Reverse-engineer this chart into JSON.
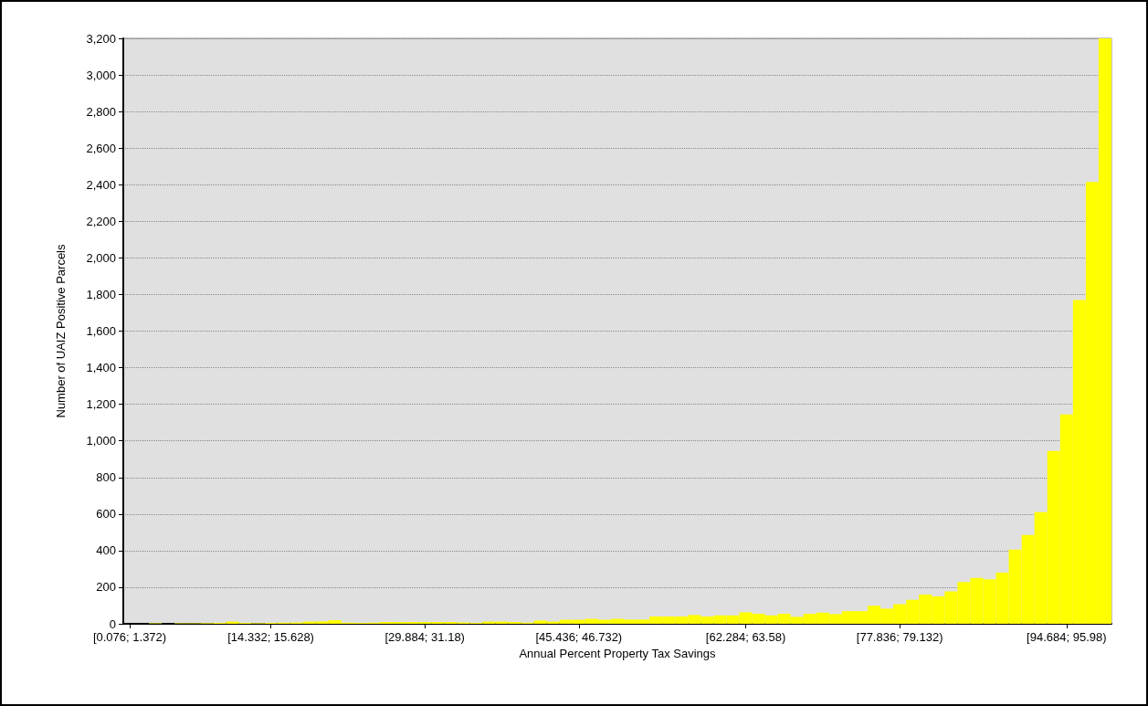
{
  "chart_data": {
    "type": "bar",
    "xlabel": "Annual Percent Property Tax Savings",
    "ylabel": "Number of UAIZ Positive Parcels",
    "categories": [
      "[0.076; 1.372)",
      null,
      null,
      null,
      null,
      null,
      null,
      null,
      null,
      null,
      null,
      "[14.332; 15.628)",
      null,
      null,
      null,
      null,
      null,
      null,
      null,
      null,
      null,
      null,
      null,
      "[29.884; 31.18)",
      null,
      null,
      null,
      null,
      null,
      null,
      null,
      null,
      null,
      null,
      null,
      "[45.436; 46.732)",
      null,
      null,
      null,
      null,
      null,
      null,
      null,
      null,
      null,
      null,
      null,
      null,
      "[62.284; 63.58)",
      null,
      null,
      null,
      null,
      null,
      null,
      null,
      null,
      null,
      null,
      null,
      "[77.836; 79.132)",
      null,
      null,
      null,
      null,
      null,
      null,
      null,
      null,
      null,
      null,
      null,
      null,
      "[94.684; 95.98)",
      null,
      null,
      null
    ],
    "values": [
      null,
      null,
      3,
      null,
      3,
      3,
      4,
      5,
      12,
      5,
      4,
      5,
      6,
      7,
      12,
      13,
      20,
      6,
      5,
      6,
      10,
      10,
      10,
      10,
      10,
      10,
      8,
      5,
      12,
      12,
      10,
      6,
      18,
      12,
      22,
      22,
      27,
      22,
      27,
      23,
      23,
      40,
      40,
      40,
      48,
      40,
      46,
      46,
      63,
      55,
      46,
      55,
      38,
      55,
      61,
      53,
      69,
      69,
      99,
      83,
      107,
      131,
      160,
      150,
      177,
      228,
      251,
      243,
      280,
      405,
      486,
      610,
      945,
      1145,
      1770,
      2415,
      3200
    ],
    "color": "#ffff00",
    "ylim": [
      0,
      3200
    ],
    "yticks": [
      0,
      200,
      400,
      600,
      800,
      {
        "value": 1000,
        "label": "1,000"
      },
      {
        "value": 1200,
        "label": "1,200"
      },
      {
        "value": 1400,
        "label": "1,400"
      },
      {
        "value": 1600,
        "label": "1,600"
      },
      {
        "value": 1800,
        "label": "1,800"
      },
      {
        "value": 2000,
        "label": "2,000"
      },
      {
        "value": 2200,
        "label": "2,200"
      },
      {
        "value": 2400,
        "label": "2,400"
      },
      {
        "value": 2600,
        "label": "2,600"
      },
      {
        "value": 2800,
        "label": "2,800"
      },
      {
        "value": 3000,
        "label": "3,000"
      },
      {
        "value": 3200,
        "label": "3,200"
      }
    ],
    "grid": "y"
  }
}
